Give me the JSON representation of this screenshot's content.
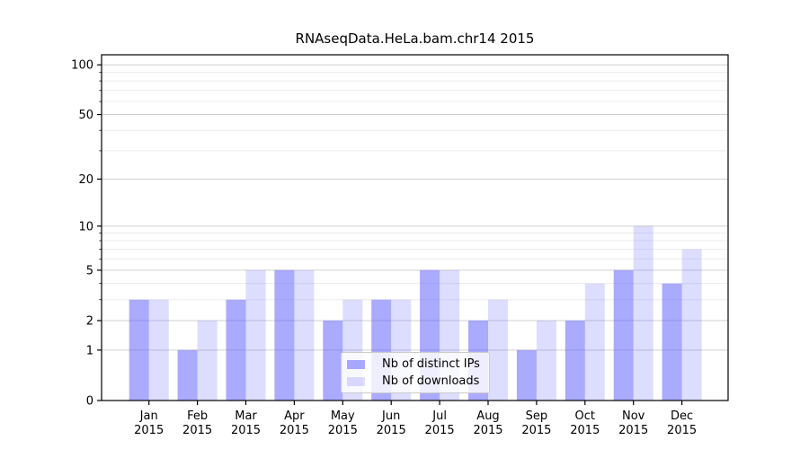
{
  "chart_data": {
    "type": "bar",
    "title": "RNAseqData.HeLa.bam.chr14 2015",
    "categories": [
      "Jan",
      "Feb",
      "Mar",
      "Apr",
      "May",
      "Jun",
      "Jul",
      "Aug",
      "Sep",
      "Oct",
      "Nov",
      "Dec"
    ],
    "category_year_label": "2015",
    "series": [
      {
        "name": "Nb of distinct IPs",
        "color": "rgba(85,85,255,0.5)",
        "color_flat": "#aaaaff",
        "values": [
          3,
          1,
          3,
          5,
          2,
          3,
          5,
          2,
          1,
          2,
          5,
          4
        ]
      },
      {
        "name": "Nb of downloads",
        "color": "rgba(85,85,255,0.2)",
        "color_flat": "#ddddff",
        "values": [
          3,
          2,
          5,
          5,
          3,
          3,
          5,
          3,
          2,
          4,
          10,
          7
        ]
      }
    ],
    "xlabel": "",
    "ylabel": "",
    "y_scale": "log1p",
    "y_ticks": [
      0,
      1,
      2,
      5,
      10,
      20,
      50,
      100
    ],
    "y_minor_gridlines": [
      3,
      4,
      6,
      7,
      8,
      9,
      30,
      40,
      60,
      70,
      80,
      90
    ],
    "ylim": [
      0,
      115
    ],
    "grid": "on",
    "legend_position": "inside-bottom-center",
    "colors": {
      "axis": "#000000",
      "major_grid": "#d0d0d0",
      "minor_grid": "#ececec",
      "tick_text": "#000000"
    }
  }
}
